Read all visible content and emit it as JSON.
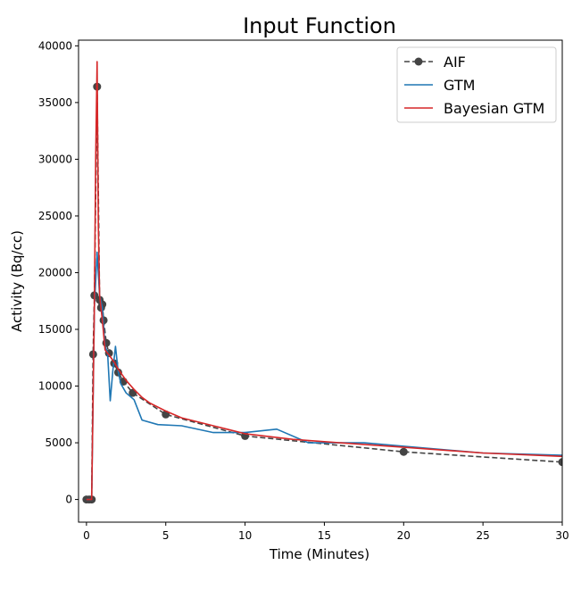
{
  "chart_data": {
    "type": "line",
    "title": "Input Function",
    "xlabel": "Time (Minutes)",
    "ylabel": "Activity (Bq/cc)",
    "xlim": [
      -0.5,
      30
    ],
    "ylim": [
      -2000,
      40500
    ],
    "xticks": [
      0,
      5,
      10,
      15,
      20,
      25,
      30
    ],
    "yticks": [
      0,
      5000,
      10000,
      15000,
      20000,
      25000,
      30000,
      35000,
      40000
    ],
    "grid": false,
    "legend_position": "top-right",
    "series": [
      {
        "name": "AIF",
        "color": "#444444",
        "style": "dashed-marker",
        "x": [
          0.0,
          0.17,
          0.33,
          0.42,
          0.5,
          0.67,
          0.83,
          0.92,
          1.0,
          1.08,
          1.25,
          1.42,
          1.75,
          2.0,
          2.33,
          2.92,
          5.0,
          10.0,
          20.0,
          30.0
        ],
        "y": [
          0,
          0,
          0,
          12800,
          18000,
          36400,
          17600,
          16900,
          17200,
          15800,
          13800,
          12900,
          12000,
          11200,
          10400,
          9400,
          7500,
          5600,
          4200,
          3300
        ]
      },
      {
        "name": "GTM",
        "color": "#1f77b4",
        "style": "solid",
        "x": [
          0.0,
          0.17,
          0.33,
          0.5,
          0.67,
          0.83,
          1.0,
          1.17,
          1.33,
          1.5,
          1.67,
          1.83,
          2.0,
          2.17,
          2.5,
          3.0,
          3.5,
          4.5,
          6.0,
          8.0,
          9.0,
          10.0,
          12.0,
          14.0,
          17.5,
          20.0,
          25.0,
          30.0
        ],
        "y": [
          0,
          0,
          0,
          17000,
          21800,
          18000,
          16900,
          13500,
          13000,
          8700,
          11500,
          13500,
          11300,
          10200,
          9400,
          8800,
          7000,
          6600,
          6500,
          5900,
          5900,
          5900,
          6200,
          5000,
          5000,
          4700,
          4100,
          3900
        ]
      },
      {
        "name": "Bayesian GTM",
        "color": "#d62728",
        "style": "solid",
        "x": [
          0.0,
          0.17,
          0.33,
          0.5,
          0.58,
          0.67,
          0.75,
          0.83,
          1.0,
          1.17,
          1.33,
          1.5,
          1.75,
          2.0,
          2.5,
          3.0,
          3.5,
          4.0,
          5.0,
          6.0,
          8.0,
          10.0,
          13.0,
          15.0,
          20.0,
          25.0,
          30.0
        ],
        "y": [
          0,
          0,
          0,
          17500,
          30000,
          38600,
          24000,
          18000,
          15800,
          13200,
          12900,
          12600,
          12100,
          11500,
          10500,
          9700,
          9000,
          8500,
          7800,
          7200,
          6500,
          5800,
          5300,
          5100,
          4600,
          4100,
          3800
        ]
      }
    ]
  }
}
